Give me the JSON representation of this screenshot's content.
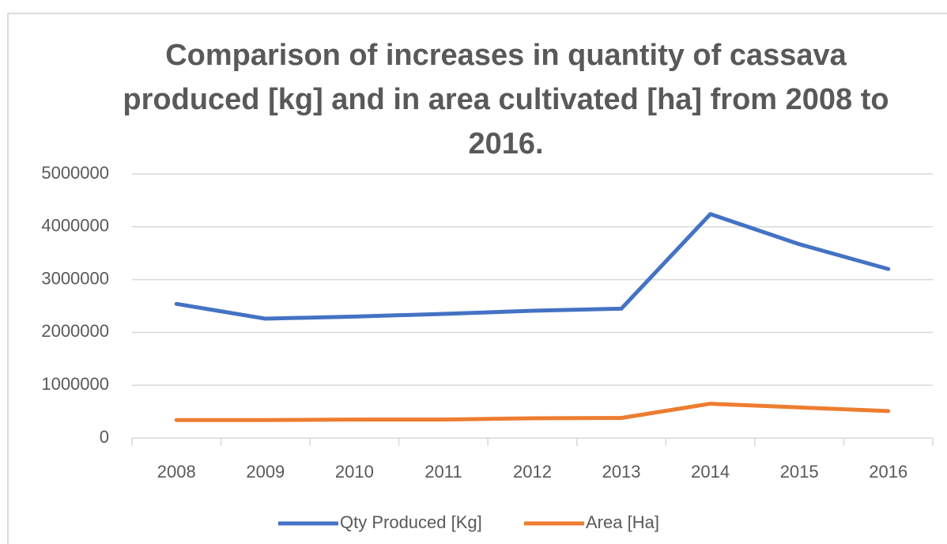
{
  "chart_data": {
    "type": "line",
    "title": "Comparison of increases in quantity of cassava produced [kg] and in area cultivated [ha] from 2008 to 2016.",
    "categories": [
      "2008",
      "2009",
      "2010",
      "2011",
      "2012",
      "2013",
      "2014",
      "2015",
      "2016"
    ],
    "series": [
      {
        "name": "Qty Produced [Kg]",
        "color": "#4472c4",
        "values": [
          2540000,
          2260000,
          2300000,
          2350000,
          2410000,
          2450000,
          4240000,
          3670000,
          3200000
        ]
      },
      {
        "name": "Area [Ha]",
        "color": "#ed7d31",
        "values": [
          340000,
          340000,
          350000,
          350000,
          375000,
          380000,
          650000,
          580000,
          510000
        ]
      }
    ],
    "ylim": [
      0,
      5000000
    ],
    "yticks": [
      0,
      1000000,
      2000000,
      3000000,
      4000000,
      5000000
    ],
    "grid": true,
    "legend": "bottom"
  }
}
